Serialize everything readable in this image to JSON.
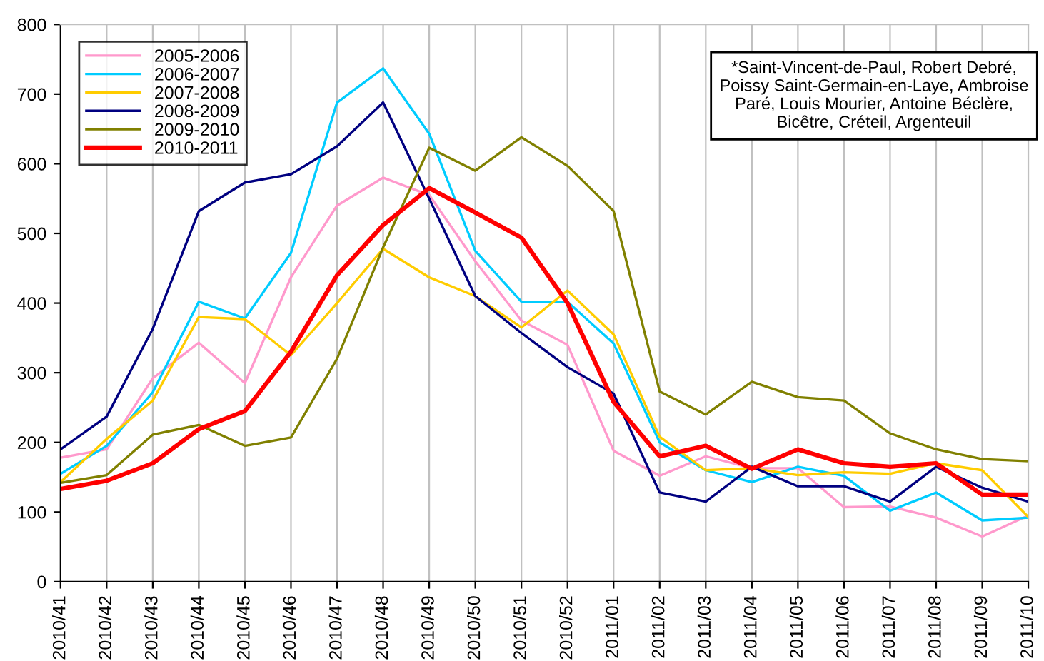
{
  "chart_data": {
    "type": "line",
    "categories": [
      "2010/41",
      "2010/42",
      "2010/43",
      "2010/44",
      "2010/45",
      "2010/46",
      "2010/47",
      "2010/48",
      "2010/49",
      "2010/50",
      "2010/51",
      "2010/52",
      "2011/01",
      "2011/02",
      "2011/03",
      "2011/04",
      "2011/05",
      "2011/06",
      "2011/07",
      "2011/08",
      "2011/09",
      "2011/10"
    ],
    "series": [
      {
        "name": "2005-2006",
        "color": "#ff99cc",
        "values": [
          178,
          190,
          292,
          343,
          285,
          437,
          540,
          580,
          555,
          460,
          375,
          340,
          188,
          152,
          180,
          163,
          163,
          107,
          108,
          92,
          65,
          95
        ]
      },
      {
        "name": "2006-2007",
        "color": "#00ccff",
        "values": [
          155,
          195,
          272,
          402,
          378,
          472,
          688,
          737,
          643,
          475,
          402,
          402,
          342,
          200,
          160,
          143,
          165,
          152,
          102,
          128,
          88,
          92
        ]
      },
      {
        "name": "2007-2008",
        "color": "#ffcc00",
        "values": [
          143,
          205,
          260,
          380,
          377,
          325,
          400,
          478,
          437,
          410,
          365,
          418,
          355,
          208,
          160,
          163,
          153,
          157,
          155,
          170,
          160,
          93
        ]
      },
      {
        "name": "2008-2009",
        "color": "#000080",
        "values": [
          190,
          237,
          363,
          532,
          573,
          585,
          625,
          688,
          550,
          410,
          357,
          308,
          270,
          128,
          115,
          165,
          137,
          137,
          115,
          165,
          135,
          115
        ]
      },
      {
        "name": "2009-2010",
        "color": "#808000",
        "values": [
          142,
          153,
          211,
          225,
          195,
          207,
          320,
          480,
          623,
          590,
          638,
          597,
          532,
          273,
          240,
          287,
          265,
          260,
          213,
          190,
          176,
          173
        ]
      },
      {
        "name": "2010-2011",
        "color": "#ff0000",
        "values": [
          133,
          145,
          170,
          219,
          245,
          330,
          440,
          512,
          565,
          530,
          494,
          400,
          258,
          180,
          195,
          162,
          190,
          170,
          165,
          170,
          125,
          125
        ]
      }
    ],
    "ylim": [
      0,
      800
    ],
    "yticks": [
      0,
      100,
      200,
      300,
      400,
      500,
      600,
      700,
      800
    ],
    "grid": "x",
    "legend": "top left",
    "marker": "none",
    "line_style": "solid",
    "annotations": [
      "*Saint-Vincent-de-Paul, Robert Debré, Poissy Saint-Germain-en-Laye, Ambroise Paré, Louis Mourier, Antoine Béclère, Bicêtre, Créteil, Argenteuil"
    ]
  }
}
